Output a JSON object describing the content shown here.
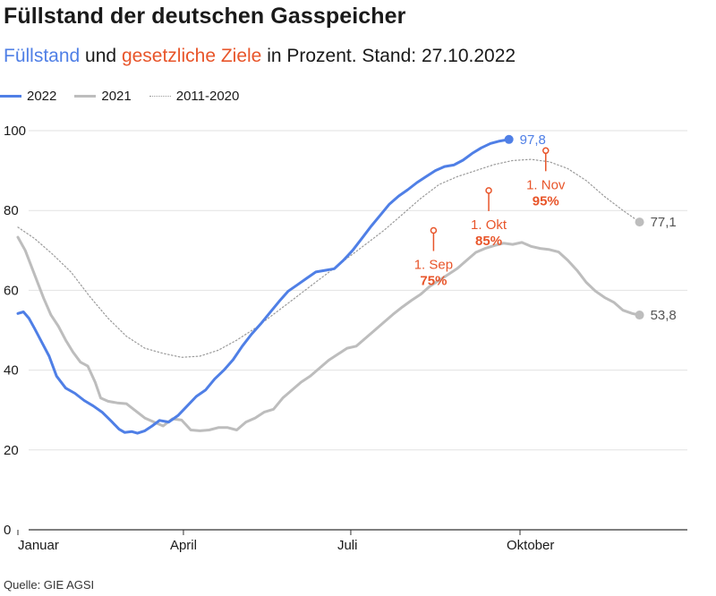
{
  "title": "Füllstand der deutschen Gasspeicher",
  "subtitle": {
    "part1": "Füllstand",
    "part2": " und ",
    "part3": "gesetzliche Ziele",
    "part4": " in Prozent. Stand: 27.10.2022"
  },
  "source": "Quelle: GIE AGSI",
  "colors": {
    "s2022": "#4f7fe6",
    "s2021": "#bdbdbd",
    "avg": "#9a9a9a",
    "target": "#e8552a",
    "grid": "#e2e2e2"
  },
  "chart_data": {
    "type": "line",
    "title": "Füllstand der deutschen Gasspeicher",
    "xlabel": "",
    "ylabel": "",
    "x_unit": "day of year",
    "xlim": [
      1,
      365
    ],
    "ylim": [
      0,
      100
    ],
    "yticks": [
      0,
      20,
      40,
      60,
      80,
      100
    ],
    "xticks": [
      {
        "day": 1,
        "label": "Januar"
      },
      {
        "day": 91,
        "label": "April"
      },
      {
        "day": 182,
        "label": "Juli"
      },
      {
        "day": 274,
        "label": "Oktober"
      }
    ],
    "grid": true,
    "legend_position": "top-left",
    "series": [
      {
        "name": "2022",
        "color": "#4f7fe6",
        "style": "solid-thick",
        "end_label": "97,8",
        "points": [
          [
            1,
            54.2
          ],
          [
            4,
            54.6
          ],
          [
            7,
            53.0
          ],
          [
            10,
            50.5
          ],
          [
            14,
            47.0
          ],
          [
            18,
            43.5
          ],
          [
            22,
            38.5
          ],
          [
            27,
            35.5
          ],
          [
            32,
            34.2
          ],
          [
            37,
            32.4
          ],
          [
            42,
            31.0
          ],
          [
            47,
            29.4
          ],
          [
            52,
            27.1
          ],
          [
            56,
            25.2
          ],
          [
            59,
            24.4
          ],
          [
            63,
            24.6
          ],
          [
            66,
            24.2
          ],
          [
            70,
            24.8
          ],
          [
            74,
            26.0
          ],
          [
            78,
            27.4
          ],
          [
            83,
            27.0
          ],
          [
            88,
            28.6
          ],
          [
            93,
            31.0
          ],
          [
            98,
            33.4
          ],
          [
            103,
            35.0
          ],
          [
            108,
            37.8
          ],
          [
            113,
            40.0
          ],
          [
            118,
            42.6
          ],
          [
            123,
            46.0
          ],
          [
            128,
            49.0
          ],
          [
            133,
            51.6
          ],
          [
            138,
            54.4
          ],
          [
            143,
            57.2
          ],
          [
            148,
            59.8
          ],
          [
            153,
            61.4
          ],
          [
            158,
            63.0
          ],
          [
            163,
            64.6
          ],
          [
            168,
            65.0
          ],
          [
            173,
            65.4
          ],
          [
            178,
            67.5
          ],
          [
            183,
            70.0
          ],
          [
            188,
            73.0
          ],
          [
            193,
            76.0
          ],
          [
            198,
            78.8
          ],
          [
            203,
            81.6
          ],
          [
            208,
            83.6
          ],
          [
            213,
            85.2
          ],
          [
            218,
            87.0
          ],
          [
            223,
            88.5
          ],
          [
            228,
            90.0
          ],
          [
            233,
            91.0
          ],
          [
            238,
            91.4
          ],
          [
            243,
            92.6
          ],
          [
            248,
            94.3
          ],
          [
            253,
            95.7
          ],
          [
            258,
            96.8
          ],
          [
            263,
            97.4
          ],
          [
            268,
            97.8
          ]
        ]
      },
      {
        "name": "2021",
        "color": "#bdbdbd",
        "style": "solid",
        "end_label": "53,8",
        "points": [
          [
            1,
            73.3
          ],
          [
            5,
            70.0
          ],
          [
            10,
            64.0
          ],
          [
            15,
            58.0
          ],
          [
            19,
            53.8
          ],
          [
            23,
            51.0
          ],
          [
            27,
            47.5
          ],
          [
            31,
            44.5
          ],
          [
            35,
            42.0
          ],
          [
            39,
            41.0
          ],
          [
            43,
            37.0
          ],
          [
            46,
            33.0
          ],
          [
            50,
            32.2
          ],
          [
            55,
            31.8
          ],
          [
            60,
            31.6
          ],
          [
            65,
            29.8
          ],
          [
            70,
            28.0
          ],
          [
            75,
            27.0
          ],
          [
            80,
            26.0
          ],
          [
            85,
            27.8
          ],
          [
            90,
            27.5
          ],
          [
            95,
            25.0
          ],
          [
            100,
            24.8
          ],
          [
            105,
            25.0
          ],
          [
            110,
            25.6
          ],
          [
            115,
            25.6
          ],
          [
            120,
            25.0
          ],
          [
            125,
            27.0
          ],
          [
            130,
            28.0
          ],
          [
            135,
            29.5
          ],
          [
            140,
            30.2
          ],
          [
            145,
            33.0
          ],
          [
            150,
            35.0
          ],
          [
            155,
            37.0
          ],
          [
            160,
            38.5
          ],
          [
            165,
            40.5
          ],
          [
            170,
            42.5
          ],
          [
            175,
            44.0
          ],
          [
            180,
            45.5
          ],
          [
            185,
            46.0
          ],
          [
            190,
            48.0
          ],
          [
            195,
            50.0
          ],
          [
            200,
            52.0
          ],
          [
            205,
            54.0
          ],
          [
            210,
            55.8
          ],
          [
            215,
            57.5
          ],
          [
            220,
            59.0
          ],
          [
            225,
            61.0
          ],
          [
            230,
            62.5
          ],
          [
            235,
            64.0
          ],
          [
            240,
            65.5
          ],
          [
            245,
            67.5
          ],
          [
            250,
            69.5
          ],
          [
            255,
            70.5
          ],
          [
            260,
            71.2
          ],
          [
            265,
            71.8
          ],
          [
            270,
            71.5
          ],
          [
            275,
            72.0
          ],
          [
            280,
            71.0
          ],
          [
            285,
            70.5
          ],
          [
            290,
            70.2
          ],
          [
            295,
            69.6
          ],
          [
            300,
            67.5
          ],
          [
            305,
            65.0
          ],
          [
            310,
            62.0
          ],
          [
            315,
            59.8
          ],
          [
            320,
            58.2
          ],
          [
            325,
            57.0
          ],
          [
            330,
            55.0
          ],
          [
            335,
            54.2
          ],
          [
            339,
            53.8
          ]
        ]
      },
      {
        "name": "2011-2020",
        "color": "#9a9a9a",
        "style": "dotted",
        "end_label": "77,1",
        "points": [
          [
            1,
            75.8
          ],
          [
            10,
            73.0
          ],
          [
            20,
            69.0
          ],
          [
            30,
            64.5
          ],
          [
            40,
            58.5
          ],
          [
            50,
            53.0
          ],
          [
            60,
            48.5
          ],
          [
            70,
            45.5
          ],
          [
            80,
            44.2
          ],
          [
            90,
            43.2
          ],
          [
            100,
            43.5
          ],
          [
            110,
            45.0
          ],
          [
            120,
            47.5
          ],
          [
            130,
            50.5
          ],
          [
            140,
            54.0
          ],
          [
            150,
            57.5
          ],
          [
            160,
            61.0
          ],
          [
            170,
            64.5
          ],
          [
            180,
            68.0
          ],
          [
            190,
            71.5
          ],
          [
            200,
            75.0
          ],
          [
            210,
            79.0
          ],
          [
            220,
            83.0
          ],
          [
            230,
            86.5
          ],
          [
            240,
            88.5
          ],
          [
            250,
            90.0
          ],
          [
            260,
            91.5
          ],
          [
            270,
            92.5
          ],
          [
            280,
            92.8
          ],
          [
            290,
            92.2
          ],
          [
            300,
            90.5
          ],
          [
            310,
            87.5
          ],
          [
            320,
            83.5
          ],
          [
            330,
            80.0
          ],
          [
            339,
            77.1
          ]
        ]
      }
    ],
    "targets": [
      {
        "label": "1. Sep",
        "value_label": "75%",
        "day": 227,
        "value": 75
      },
      {
        "label": "1. Okt",
        "value_label": "85%",
        "day": 257,
        "value": 85
      },
      {
        "label": "1. Nov",
        "value_label": "95%",
        "day": 288,
        "value": 95
      }
    ]
  }
}
